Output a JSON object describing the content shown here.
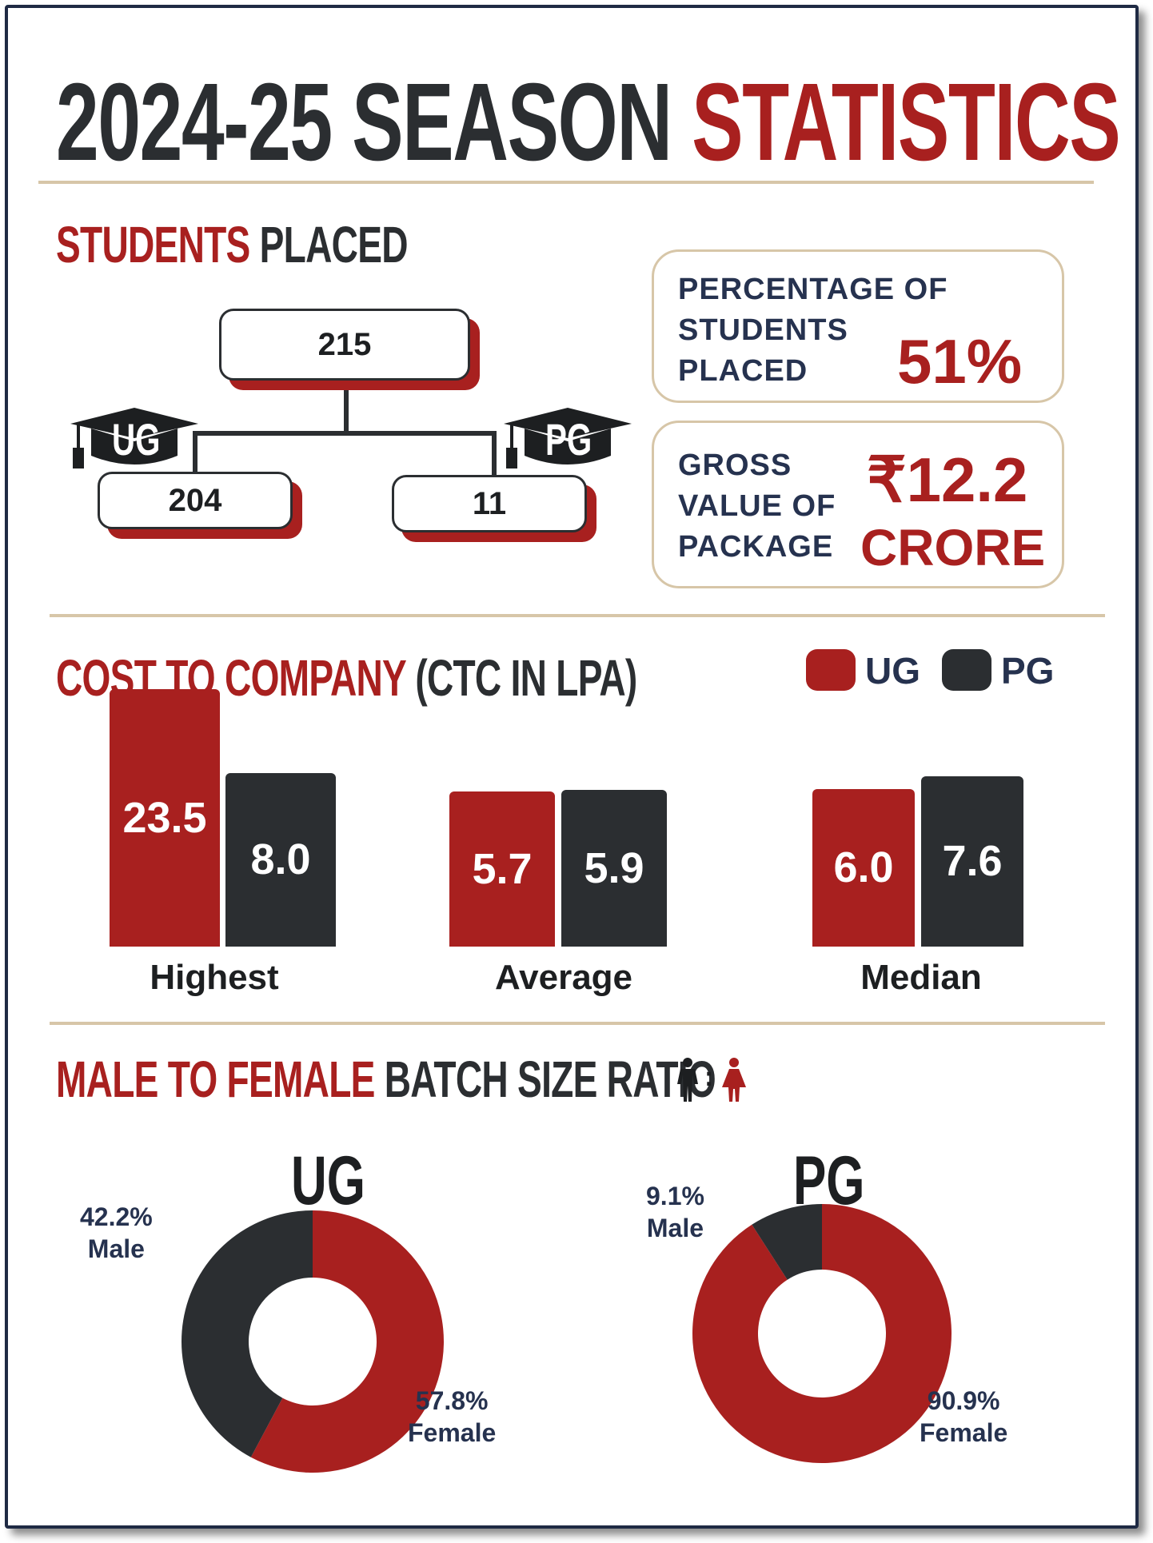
{
  "header": {
    "title_part1": "2024-25 SEASON",
    "title_part2": "STATISTICS"
  },
  "students_placed": {
    "title_red": "STUDENTS",
    "title_dark": "PLACED",
    "total": "215",
    "ug_label": "UG",
    "ug_value": "204",
    "pg_label": "PG",
    "pg_value": "11",
    "percentage_label_lines": [
      "PERCENTAGE OF",
      "STUDENTS",
      "PLACED"
    ],
    "percentage_value": "51%",
    "gross_label_lines": [
      "GROSS",
      "VALUE OF",
      "PACKAGE"
    ],
    "gross_value_line1": "₹12.2",
    "gross_value_line2": "CRORE"
  },
  "ctc": {
    "title_red": "COST TO COMPANY",
    "title_dark": "(CTC IN LPA)",
    "legend": [
      {
        "label": "UG",
        "color": "#a8201f"
      },
      {
        "label": "PG",
        "color": "#2b2e31"
      }
    ]
  },
  "ratio": {
    "title_red": "MALE TO FEMALE",
    "title_dark": "BATCH SIZE RATIO",
    "icons": [
      "male-person-icon",
      "female-person-icon"
    ],
    "separator": ":"
  },
  "chart_data": [
    {
      "type": "bar",
      "categories": [
        "Highest",
        "Average",
        "Median"
      ],
      "series": [
        {
          "name": "UG",
          "values": [
            23.5,
            5.7,
            6.0
          ],
          "color": "#a8201f"
        },
        {
          "name": "PG",
          "values": [
            8.0,
            5.9,
            7.6
          ],
          "color": "#2b2e31"
        }
      ],
      "title": "COST TO COMPANY (CTC IN LPA)",
      "legend_position": "top-right"
    },
    {
      "type": "pie",
      "title": "UG",
      "slices": [
        {
          "label": "Female",
          "value": 57.8,
          "text": "57.8%",
          "color": "#a8201f"
        },
        {
          "label": "Male",
          "value": 42.2,
          "text": "42.2%",
          "color": "#2b2e31"
        }
      ]
    },
    {
      "type": "pie",
      "title": "PG",
      "slices": [
        {
          "label": "Female",
          "value": 90.9,
          "text": "90.9%",
          "color": "#a8201f"
        },
        {
          "label": "Male",
          "value": 9.1,
          "text": "9.1%",
          "color": "#2b2e31"
        }
      ]
    }
  ]
}
